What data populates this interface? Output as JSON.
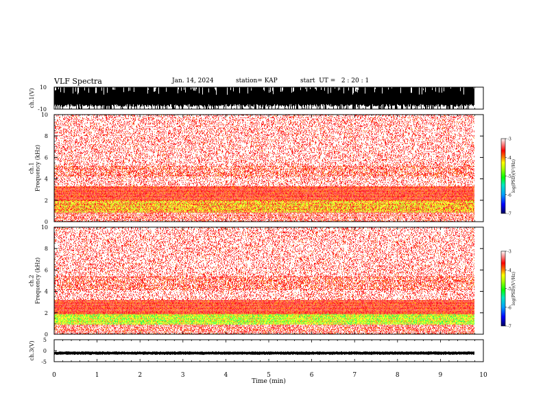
{
  "header": {
    "title": "VLF Spectra",
    "date": "Jan. 14, 2024",
    "station": "station= KAP",
    "start_ut": "start  UT =   2 : 20 : 1"
  },
  "chart_data": [
    {
      "type": "line",
      "id": "ch1-waveform",
      "ylabel": "ch.1(V)",
      "ylim": [
        -10,
        10
      ],
      "yticks": [
        "10",
        "-10"
      ],
      "xlim": [
        0,
        10
      ],
      "data_extent_min": 9.8,
      "description_of_values": "dense oscillating waveform mostly saturating between -10 and 10 V"
    },
    {
      "type": "heatmap",
      "id": "ch1-spectrogram",
      "ylabel": "ch.1\nFrequency  (kHz)",
      "ylim": [
        0,
        10
      ],
      "yticks": [
        "0",
        "2",
        "4",
        "6",
        "8",
        "10"
      ],
      "xlim": [
        0,
        10
      ],
      "data_extent_min": 9.8,
      "bands": [
        {
          "from_khz": 0.9,
          "to_khz": 2.0,
          "level": -4.4
        },
        {
          "from_khz": 2.0,
          "to_khz": 3.3,
          "level": -3.8
        },
        {
          "from_khz": 3.3,
          "to_khz": 4.2,
          "level": -3.1
        },
        {
          "from_khz": 4.2,
          "to_khz": 5.2,
          "level": -3.3
        },
        {
          "from_khz": 5.2,
          "to_khz": 10.0,
          "level": -3.05
        },
        {
          "from_khz": 0.0,
          "to_khz": 0.9,
          "level": -3.2
        }
      ],
      "colorbar": {
        "label": "log(PSD)(V²/Hz)",
        "range": [
          -7,
          -3
        ],
        "ticks": [
          "-3",
          "-4",
          "-5",
          "-6",
          "-7"
        ]
      }
    },
    {
      "type": "heatmap",
      "id": "ch2-spectrogram",
      "ylabel": "ch.2\nFrequency  (kHz)",
      "ylim": [
        0,
        10
      ],
      "yticks": [
        "0",
        "2",
        "4",
        "6",
        "8",
        "10"
      ],
      "xlim": [
        0,
        10
      ],
      "data_extent_min": 9.8,
      "bands": [
        {
          "from_khz": 0.9,
          "to_khz": 1.9,
          "level": -4.8
        },
        {
          "from_khz": 1.9,
          "to_khz": 3.2,
          "level": -3.8
        },
        {
          "from_khz": 3.2,
          "to_khz": 4.2,
          "level": -3.1
        },
        {
          "from_khz": 4.2,
          "to_khz": 5.4,
          "level": -3.3
        },
        {
          "from_khz": 5.4,
          "to_khz": 10.0,
          "level": -3.05
        },
        {
          "from_khz": 0.0,
          "to_khz": 0.9,
          "level": -3.2
        }
      ],
      "colorbar": {
        "label": "log(PSD)(V²/Hz)",
        "range": [
          -7,
          -3
        ],
        "ticks": [
          "-3",
          "-4",
          "-5",
          "-6",
          "-7"
        ]
      }
    },
    {
      "type": "line",
      "id": "ch3-waveform",
      "ylabel": "ch.3(V)",
      "ylim": [
        -5,
        5
      ],
      "yticks": [
        "5",
        "0",
        "-5"
      ],
      "xlim": [
        0,
        10
      ],
      "data_extent_min": 9.8,
      "description_of_values": "narrow band oscillating around -1 V"
    }
  ],
  "xaxis": {
    "label": "Time  (min)",
    "ticks": [
      "0",
      "1",
      "2",
      "3",
      "4",
      "5",
      "6",
      "7",
      "8",
      "9",
      "10"
    ]
  },
  "colors": {
    "scale": [
      "#000080",
      "#0000ff",
      "#00a0ff",
      "#00e0a0",
      "#00ff00",
      "#a0ff00",
      "#ffff00",
      "#ff8000",
      "#ff0000",
      "#ffffff"
    ]
  }
}
